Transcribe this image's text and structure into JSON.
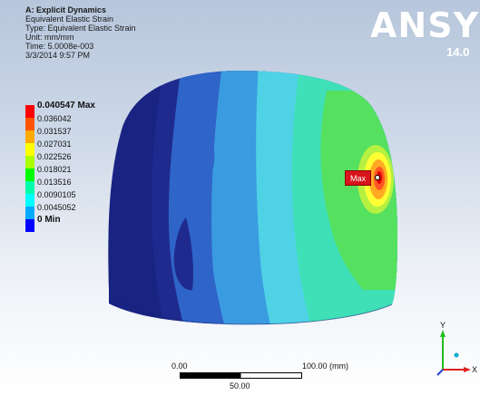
{
  "info": {
    "analysis": "A: Explicit Dynamics",
    "result": "Equivalent Elastic Strain",
    "type": "Type: Equivalent Elastic Strain",
    "unit": "Unit: mm/mm",
    "time": "Time: 5.0008e-003",
    "date": "3/3/2014 9:57 PM"
  },
  "legend": {
    "items": [
      {
        "label": "0.040547 Max",
        "color": "#ff0000"
      },
      {
        "label": "0.036042",
        "color": "#ff5500"
      },
      {
        "label": "0.031537",
        "color": "#ffaa00"
      },
      {
        "label": "0.027031",
        "color": "#ffff00"
      },
      {
        "label": "0.022526",
        "color": "#aaff00"
      },
      {
        "label": "0.018021",
        "color": "#00ff00"
      },
      {
        "label": "0.013516",
        "color": "#00ffaa"
      },
      {
        "label": "0.0090105",
        "color": "#00ffff"
      },
      {
        "label": "0.0045052",
        "color": "#00aaff"
      },
      {
        "label": "0 Min",
        "color": "#0000ff"
      }
    ]
  },
  "logo": {
    "text": "ANSYS",
    "version": "14.0"
  },
  "probe": {
    "label": "Max"
  },
  "scale": {
    "left": "0.00",
    "right": "100.00 (mm)",
    "mid": "50.00"
  },
  "triad": {
    "y": "Y",
    "x": "X"
  }
}
